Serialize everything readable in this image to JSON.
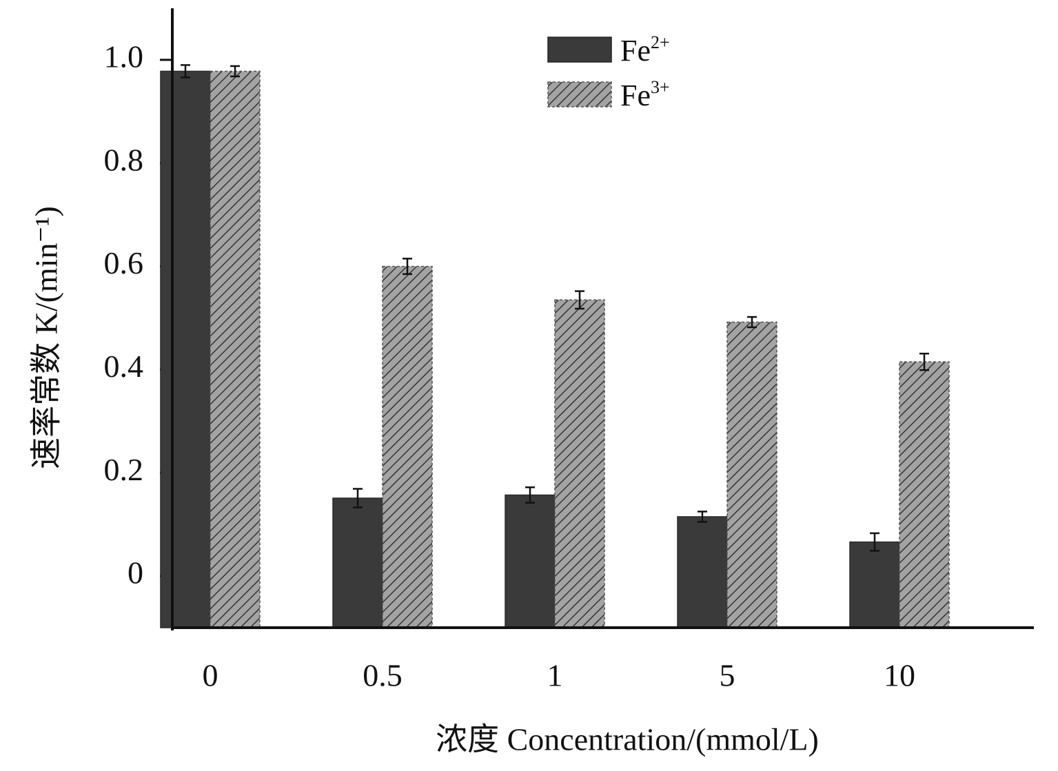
{
  "chart_data": {
    "type": "bar",
    "title": "",
    "xlabel": "浓度 Concentration/(mmol/L)",
    "ylabel": "速率常数 K/(min⁻¹)",
    "ylim": [
      -0.1,
      1.1
    ],
    "yticks": [
      0,
      0.2,
      0.4,
      0.6,
      0.8,
      1.0
    ],
    "ytick_labels": [
      "0",
      "0.2",
      "0.4",
      "0.6",
      "0.8",
      "1.0"
    ],
    "categories": [
      "0",
      "0.5",
      "1",
      "5",
      "10"
    ],
    "legend_position": "top",
    "series": [
      {
        "name": "Fe2+",
        "legend_base": "Fe",
        "legend_sup": "2+",
        "fill": "#3a3a3a",
        "pattern": "solid",
        "values": [
          0.978,
          0.151,
          0.157,
          0.115,
          0.066
        ],
        "errors": [
          0.012,
          0.018,
          0.015,
          0.01,
          0.017
        ]
      },
      {
        "name": "Fe3+",
        "legend_base": "Fe",
        "legend_sup": "3+",
        "fill": "#9a9a9a",
        "pattern": "hatched",
        "values": [
          0.978,
          0.6,
          0.535,
          0.492,
          0.415
        ],
        "errors": [
          0.01,
          0.015,
          0.017,
          0.01,
          0.016
        ]
      }
    ]
  }
}
